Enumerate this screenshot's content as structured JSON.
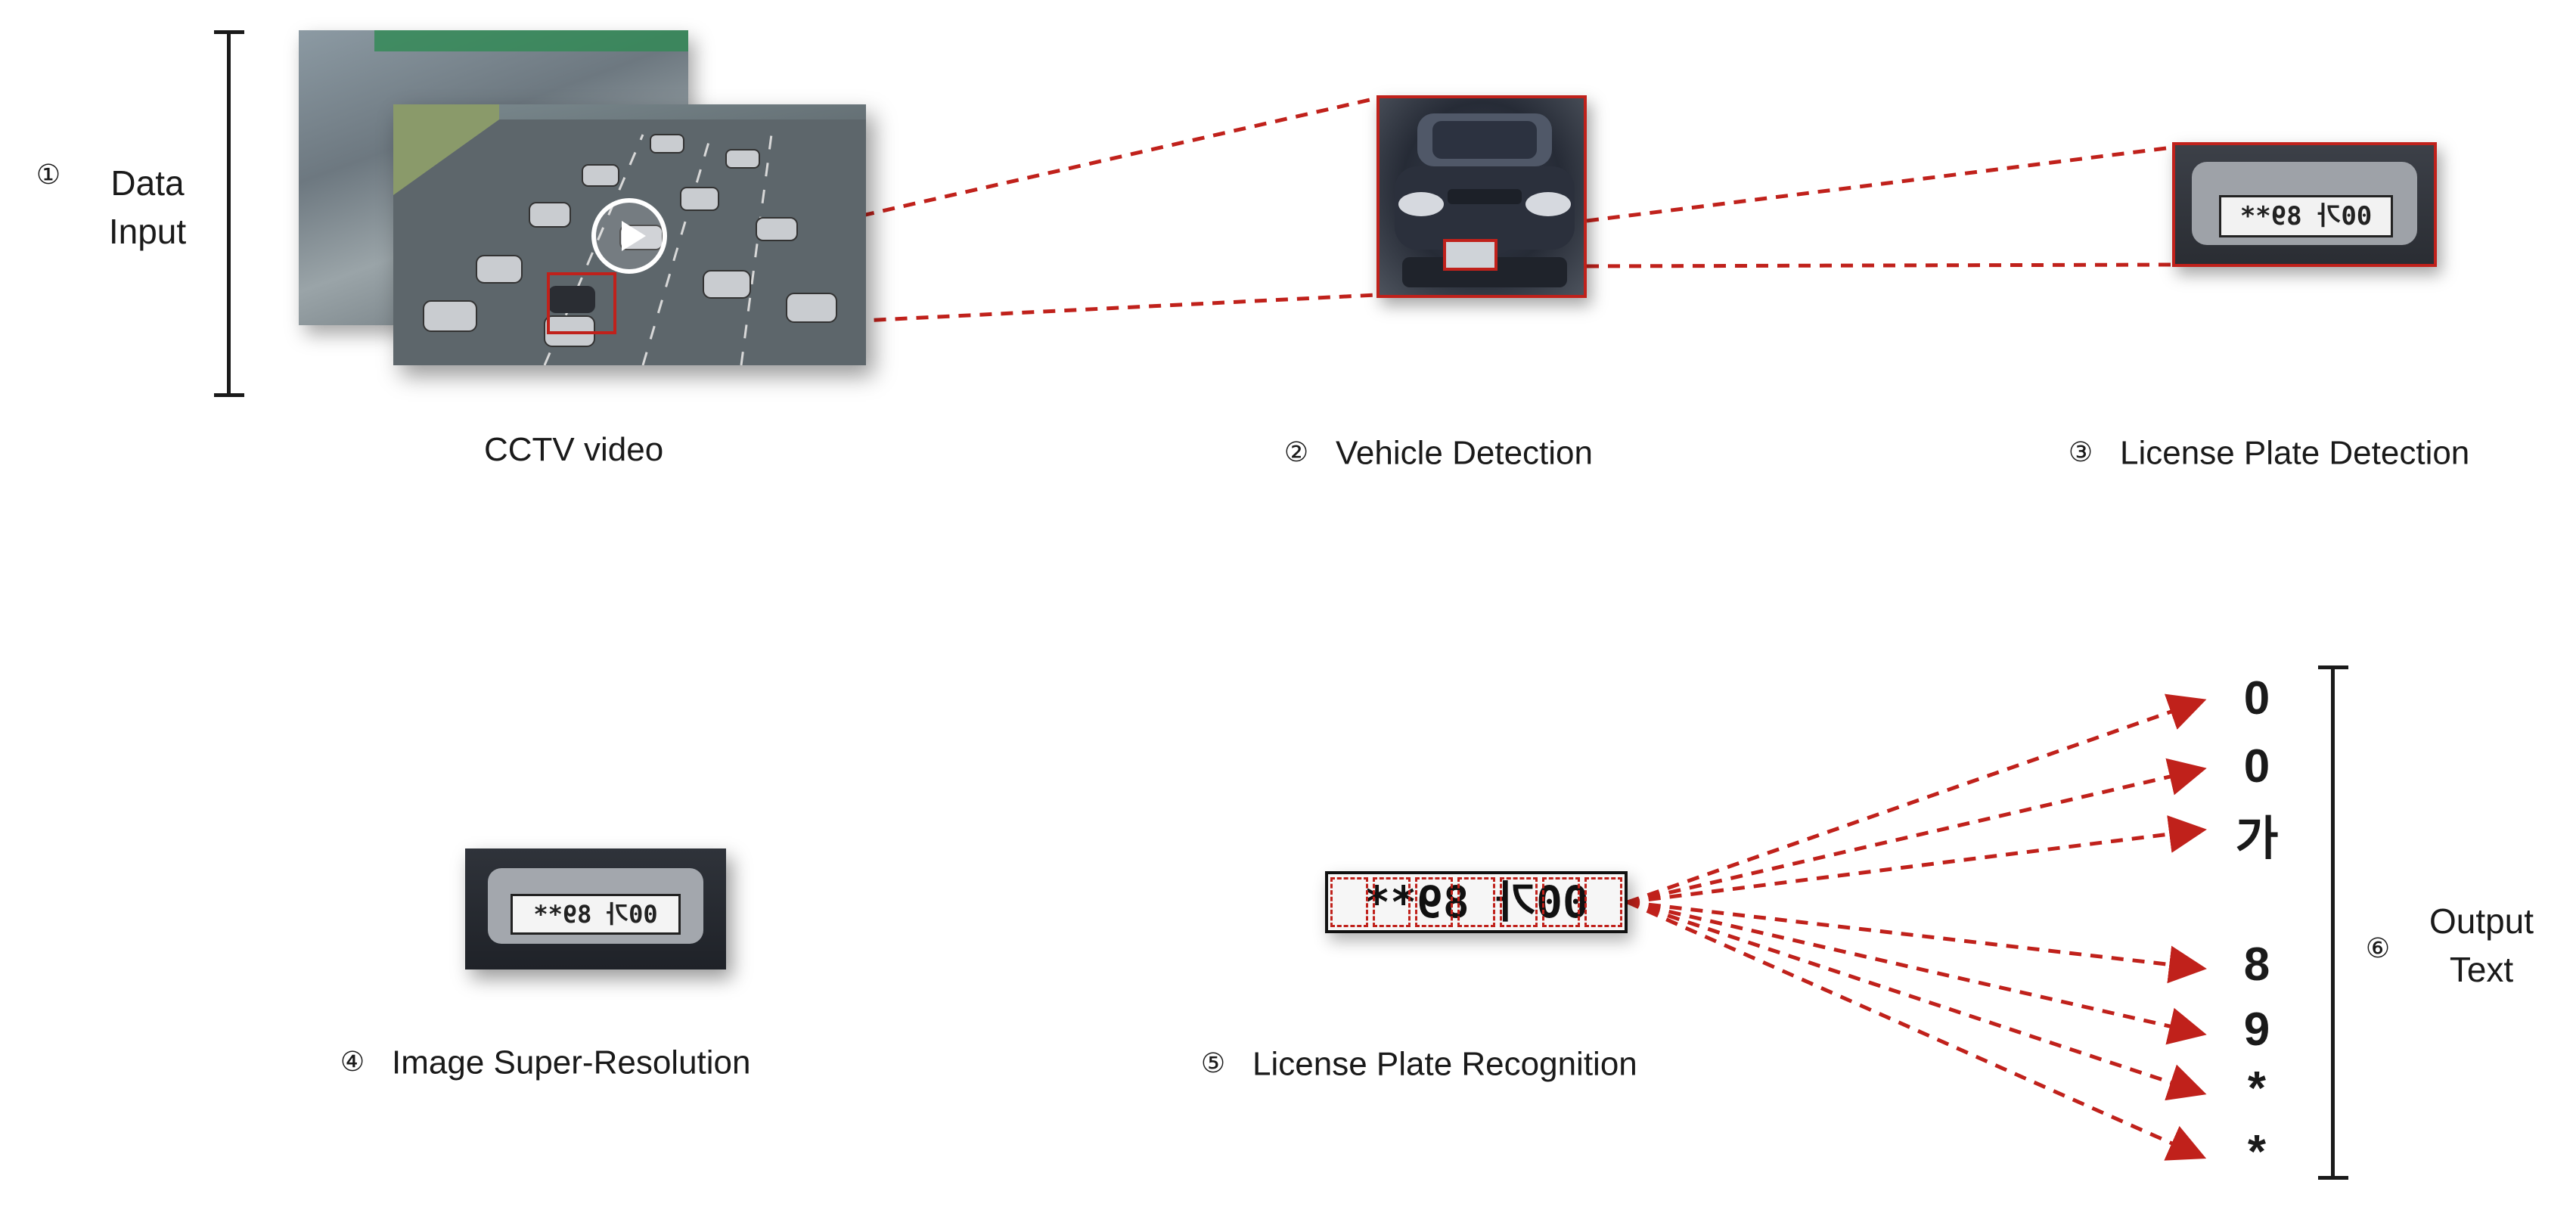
{
  "steps": {
    "data_input": {
      "num": "①",
      "label_line1": "Data",
      "label_line2": "Input",
      "caption": "CCTV video"
    },
    "vehicle_detection": {
      "num": "②",
      "label": "Vehicle Detection"
    },
    "plate_detection": {
      "num": "③",
      "label": "License Plate Detection"
    },
    "super_resolution": {
      "num": "④",
      "label": "Image Super-Resolution"
    },
    "plate_recognition": {
      "num": "⑤",
      "label": "License Plate Recognition"
    },
    "output_text": {
      "num": "⑥",
      "label_line1": "Output",
      "label_line2": "Text"
    }
  },
  "output_chars": [
    "0",
    "0",
    "가",
    "8",
    "9",
    "*",
    "*"
  ],
  "plate_text": "00가 89**",
  "colors": {
    "accent": "#c0211b",
    "dark": "#1a1a1a"
  },
  "icons": [
    "play-icon"
  ]
}
